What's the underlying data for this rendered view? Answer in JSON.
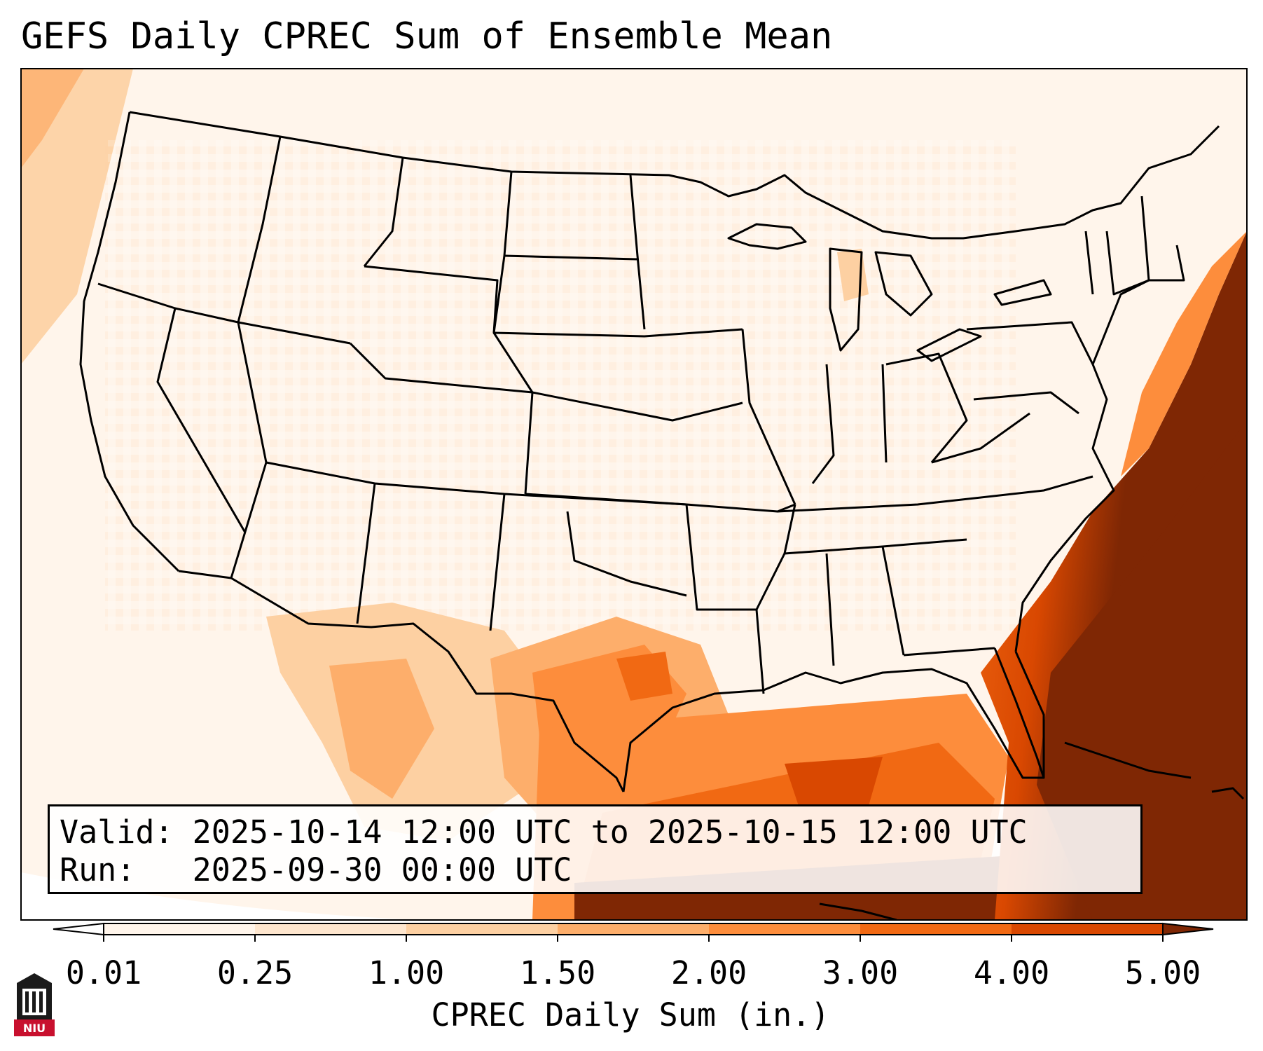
{
  "title": "GEFS Daily CPREC Sum of Ensemble Mean",
  "info": {
    "valid_label": "Valid:",
    "valid_value": "2025-10-14 12:00 UTC to 2025-10-15 12:00 UTC",
    "run_label": "Run:",
    "run_value": "2025-09-30 00:00 UTC"
  },
  "colorbar": {
    "label": "CPREC Daily Sum (in.)",
    "ticks": [
      "0.01",
      "0.25",
      "1.00",
      "1.50",
      "2.00",
      "3.00",
      "4.00",
      "5.00"
    ],
    "colors": [
      "#fff5eb",
      "#fee6ce",
      "#fdd0a2",
      "#fdae6b",
      "#fd8d3c",
      "#f16913",
      "#d94801",
      "#a63603"
    ],
    "under_color": "#ffffff",
    "over_color": "#7f2704"
  },
  "logo": {
    "text": "NIU",
    "color": "#c8102e"
  },
  "chart_data": {
    "type": "heatmap",
    "title": "GEFS Daily CPREC Sum of Ensemble Mean",
    "variable": "CPREC Daily Sum (in.)",
    "levels": [
      0.01,
      0.25,
      1.0,
      1.5,
      2.0,
      3.0,
      4.0,
      5.0
    ],
    "regions": [
      {
        "area": "Most of CONUS interior",
        "range": "0.01-0.25"
      },
      {
        "area": "Southern Texas / Mexico",
        "range": "1.50-3.00"
      },
      {
        "area": "Gulf of Mexico",
        "range": "2.00-4.00"
      },
      {
        "area": "Western Atlantic off Southeast US",
        "range": ">5.00"
      }
    ]
  }
}
